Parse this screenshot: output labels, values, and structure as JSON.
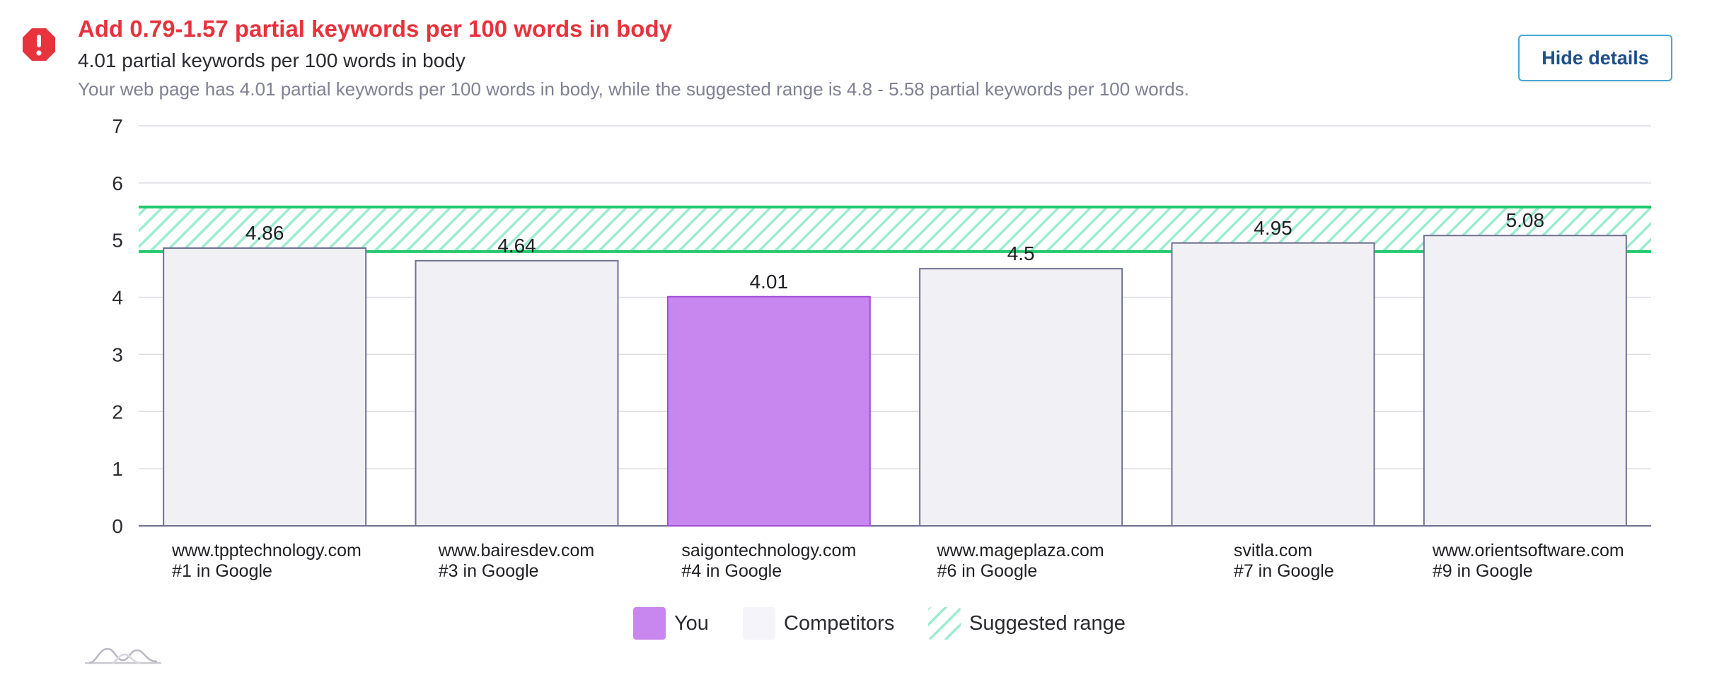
{
  "header": {
    "headline": "Add 0.79-1.57 partial keywords per 100 words in body",
    "summary": "4.01 partial keywords per 100 words in body",
    "description": "Your web page has 4.01 partial keywords per 100 words in body, while the suggested range is 4.8 - 5.58 partial keywords per 100 words.",
    "hide_details_label": "Hide details"
  },
  "icons": {
    "alert": "alert-icon",
    "logo": "logo-mark-icon"
  },
  "colors": {
    "alert_red": "#e8323c",
    "you_fill": "#c887ee",
    "you_stroke": "#a24fd6",
    "competitor_fill": "#f0f0f5",
    "competitor_stroke": "#6f7190",
    "range_line": "#22c96b",
    "range_hatch": "#9eebd0",
    "button_border": "#4aa6d6",
    "button_text": "#1e4f8a"
  },
  "chart_data": {
    "type": "bar",
    "title": "",
    "xlabel": "",
    "ylabel": "",
    "ylim": [
      0,
      7
    ],
    "yticks": [
      0,
      1,
      2,
      3,
      4,
      5,
      6,
      7
    ],
    "grid": true,
    "suggested_range": [
      4.8,
      5.58
    ],
    "bars": [
      {
        "site": "www.tpptechnology.com",
        "rank": "#1 in Google",
        "value": 4.86,
        "label": "4.86",
        "is_you": false
      },
      {
        "site": "www.bairesdev.com",
        "rank": "#3 in Google",
        "value": 4.64,
        "label": "4.64",
        "is_you": false
      },
      {
        "site": "saigontechnology.com",
        "rank": "#4 in Google",
        "value": 4.01,
        "label": "4.01",
        "is_you": true
      },
      {
        "site": "www.mageplaza.com",
        "rank": "#6 in Google",
        "value": 4.5,
        "label": "4.5",
        "is_you": false
      },
      {
        "site": "svitla.com",
        "rank": "#7 in Google",
        "value": 4.95,
        "label": "4.95",
        "is_you": false
      },
      {
        "site": "www.orientsoftware.com",
        "rank": "#9 in Google",
        "value": 5.08,
        "label": "5.08",
        "is_you": false
      }
    ],
    "legend": {
      "placement": "bottom-center",
      "items": [
        {
          "key": "you",
          "label": "You"
        },
        {
          "key": "competitors",
          "label": "Competitors"
        },
        {
          "key": "range",
          "label": "Suggested range"
        }
      ]
    }
  }
}
